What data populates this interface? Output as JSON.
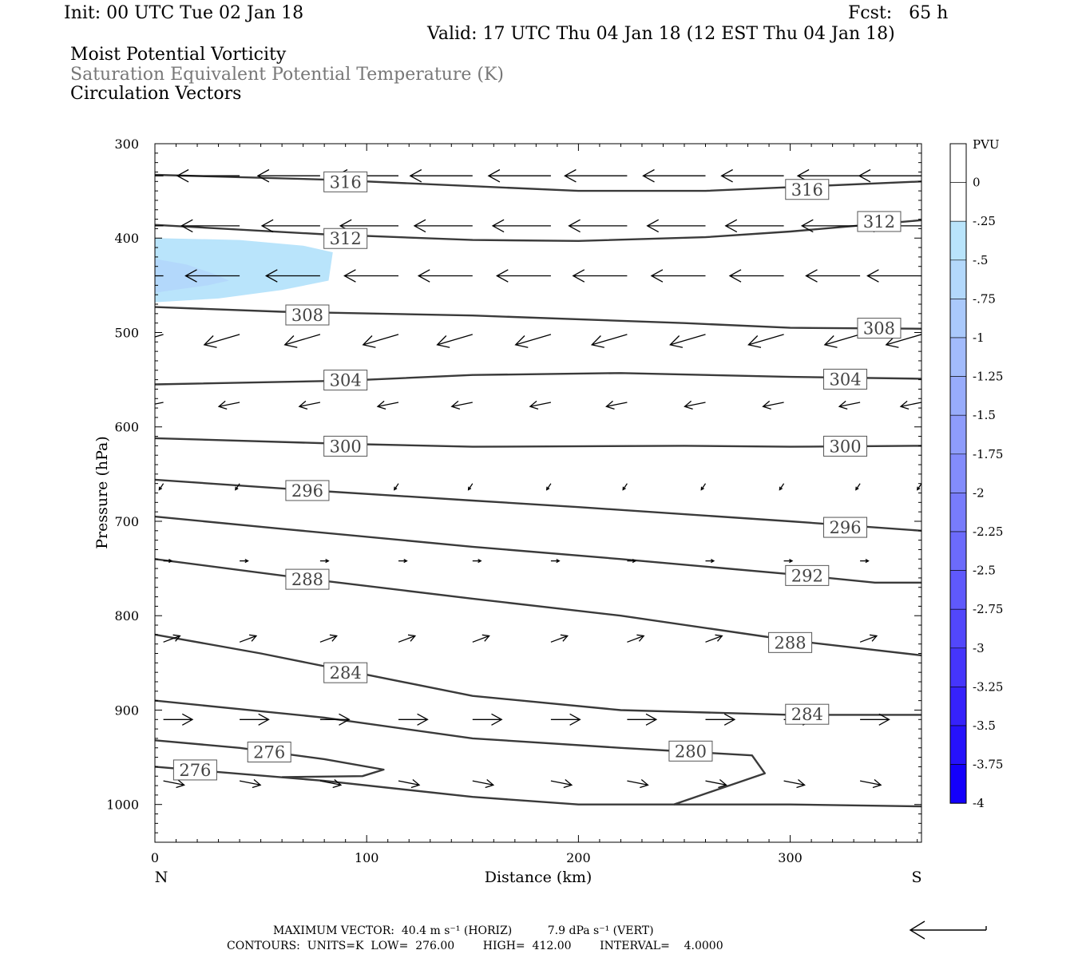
{
  "header": {
    "init": "Init: 00 UTC Tue 02 Jan 18",
    "fcst": "Fcst:   65 h",
    "valid": "Valid: 17 UTC Thu 04 Jan 18 (12 EST Thu 04 Jan 18)",
    "field1": "Moist Potential Vorticity",
    "field2": "Saturation Equivalent Potential Temperature (K)",
    "field3": "Circulation Vectors"
  },
  "footer": {
    "line1": "MAXIMUM VECTOR:  40.4 m s⁻¹ (HORIZ)          7.9 dPa s⁻¹ (VERT)",
    "line2": "CONTOURS:  UNITS=K  LOW=  276.00        HIGH=  412.00        INTERVAL=    4.0000"
  },
  "chart_data": {
    "type": "contour",
    "xlabel": "Distance (km)",
    "ylabel": "Pressure (hPa)",
    "xlim": [
      0,
      362
    ],
    "ylim": [
      300,
      1040
    ],
    "x_ticks": [
      0,
      100,
      200,
      300
    ],
    "y_ticks": [
      300,
      400,
      500,
      600,
      700,
      800,
      900,
      1000
    ],
    "x_end_labels": {
      "left": "N",
      "right": "S"
    },
    "colorbar": {
      "unit": "PVU",
      "levels": [
        "0",
        "-.25",
        "-.5",
        "-.75",
        "-1",
        "-1.25",
        "-1.5",
        "-1.75",
        "-2",
        "-2.25",
        "-2.5",
        "-2.75",
        "-3",
        "-3.25",
        "-3.5",
        "-3.75",
        "-4"
      ],
      "colors": [
        "#ffffff",
        "#ffffff",
        "#b9e4fb",
        "#b3d8fb",
        "#aac9fb",
        "#a2bbfb",
        "#98acfb",
        "#8e9cfb",
        "#838cfb",
        "#787cfb",
        "#6c6bfb",
        "#5f59fb",
        "#5247fb",
        "#4535fb",
        "#3622fb",
        "#2612fb",
        "#1400fb"
      ]
    },
    "pv_fill": [
      {
        "level": "-.25",
        "color": "#b9e4fb",
        "points": [
          [
            0,
            400
          ],
          [
            40,
            402
          ],
          [
            70,
            408
          ],
          [
            84,
            415
          ],
          [
            82,
            445
          ],
          [
            60,
            455
          ],
          [
            30,
            464
          ],
          [
            0,
            468
          ]
        ]
      },
      {
        "level": "-.5",
        "color": "#b3d8fb",
        "points": [
          [
            0,
            422
          ],
          [
            15,
            428
          ],
          [
            28,
            438
          ],
          [
            35,
            445
          ],
          [
            25,
            450
          ],
          [
            12,
            454
          ],
          [
            0,
            458
          ]
        ]
      }
    ],
    "contours": [
      {
        "value": 316,
        "points": [
          [
            0,
            333
          ],
          [
            80,
            338
          ],
          [
            150,
            345
          ],
          [
            200,
            350
          ],
          [
            260,
            350
          ],
          [
            300,
            346
          ],
          [
            362,
            340
          ]
        ],
        "labels": [
          [
            90,
            340
          ],
          [
            308,
            348
          ]
        ]
      },
      {
        "value": 312,
        "points": [
          [
            0,
            386
          ],
          [
            80,
            396
          ],
          [
            150,
            402
          ],
          [
            200,
            403
          ],
          [
            260,
            399
          ],
          [
            300,
            393
          ],
          [
            362,
            381
          ]
        ],
        "labels": [
          [
            90,
            400
          ],
          [
            342,
            382
          ]
        ]
      },
      {
        "value": 308,
        "points": [
          [
            0,
            473
          ],
          [
            60,
            478
          ],
          [
            150,
            482
          ],
          [
            250,
            490
          ],
          [
            300,
            495
          ],
          [
            362,
            496
          ]
        ],
        "labels": [
          [
            72,
            481
          ],
          [
            342,
            495
          ]
        ]
      },
      {
        "value": 304,
        "points": [
          [
            0,
            555
          ],
          [
            90,
            551
          ],
          [
            150,
            545
          ],
          [
            220,
            543
          ],
          [
            300,
            547
          ],
          [
            362,
            549
          ]
        ],
        "labels": [
          [
            90,
            550
          ],
          [
            326,
            549
          ]
        ]
      },
      {
        "value": 300,
        "points": [
          [
            0,
            612
          ],
          [
            90,
            618
          ],
          [
            150,
            621
          ],
          [
            250,
            620
          ],
          [
            300,
            621
          ],
          [
            362,
            620
          ]
        ],
        "labels": [
          [
            90,
            620
          ],
          [
            326,
            620
          ]
        ]
      },
      {
        "value": 296,
        "points": [
          [
            0,
            656
          ],
          [
            72,
            667
          ],
          [
            150,
            678
          ],
          [
            200,
            685
          ],
          [
            300,
            700
          ],
          [
            362,
            710
          ]
        ],
        "labels": [
          [
            72,
            667
          ],
          [
            326,
            706
          ]
        ]
      },
      {
        "value": 292,
        "points": [
          [
            0,
            695
          ],
          [
            60,
            708
          ],
          [
            150,
            727
          ],
          [
            220,
            740
          ],
          [
            300,
            756
          ],
          [
            340,
            765
          ],
          [
            362,
            765
          ]
        ],
        "labels": [
          [
            308,
            757
          ]
        ]
      },
      {
        "value": 288,
        "points": [
          [
            0,
            740
          ],
          [
            72,
            761
          ],
          [
            150,
            782
          ],
          [
            220,
            800
          ],
          [
            300,
            826
          ],
          [
            362,
            842
          ]
        ],
        "labels": [
          [
            72,
            761
          ],
          [
            300,
            828
          ]
        ]
      },
      {
        "value": 284,
        "points": [
          [
            0,
            820
          ],
          [
            50,
            840
          ],
          [
            90,
            858
          ],
          [
            150,
            885
          ],
          [
            220,
            900
          ],
          [
            300,
            905
          ],
          [
            362,
            905
          ]
        ],
        "labels": [
          [
            90,
            860
          ],
          [
            308,
            904
          ]
        ]
      },
      {
        "value": 280,
        "points": [
          [
            0,
            890
          ],
          [
            80,
            908
          ],
          [
            150,
            930
          ],
          [
            220,
            940
          ],
          [
            282,
            948
          ],
          [
            288,
            967
          ],
          [
            245,
            1000
          ]
        ],
        "labels": [
          [
            253,
            943
          ]
        ]
      },
      {
        "value": 276,
        "points": [
          [
            0,
            932
          ],
          [
            40,
            940
          ],
          [
            80,
            952
          ],
          [
            108,
            963
          ],
          [
            98,
            970
          ],
          [
            60,
            971
          ]
        ],
        "labels": [
          [
            54,
            944
          ]
        ]
      },
      {
        "value": 276,
        "points": [
          [
            0,
            960
          ],
          [
            80,
            975
          ],
          [
            150,
            992
          ],
          [
            200,
            1000
          ],
          [
            300,
            1000
          ],
          [
            362,
            1002
          ]
        ],
        "labels": [
          [
            19,
            963
          ]
        ]
      }
    ],
    "vectors": [
      {
        "y": 334,
        "u": -30,
        "v": 0
      },
      {
        "y": 387,
        "u": -28,
        "v": 0
      },
      {
        "y": 440,
        "u": -26,
        "v": 0
      },
      {
        "y": 502,
        "u": -17,
        "v": 5
      },
      {
        "y": 574,
        "u": -10,
        "v": 2
      },
      {
        "y": 660,
        "u": -2,
        "v": 3
      },
      {
        "y": 742,
        "u": 4,
        "v": 0
      },
      {
        "y": 828,
        "u": 8,
        "v": -3
      },
      {
        "y": 910,
        "u": 14,
        "v": 0
      },
      {
        "y": 975,
        "u": 10,
        "v": 2
      }
    ],
    "vector_x": [
      4,
      40,
      78,
      115,
      150,
      187,
      223,
      260,
      297,
      333,
      362
    ],
    "reference_vector": "40.4 m s⁻¹"
  }
}
